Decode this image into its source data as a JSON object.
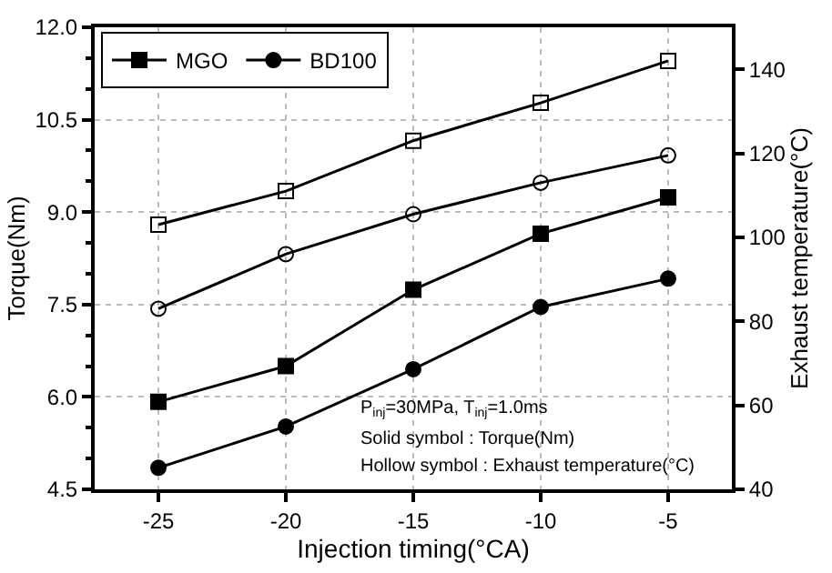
{
  "chart_data": {
    "type": "line",
    "xlabel": "Injection timing(°CA)",
    "ylabel": "Torque(Nm)",
    "y2label": "Exhaust temperature(°C)",
    "x": [
      -25,
      -20,
      -15,
      -10,
      -5
    ],
    "series": [
      {
        "name": "MGO",
        "color": "#000000",
        "marker": "square",
        "values": [
          5.92,
          6.5,
          7.74,
          8.65,
          9.24
        ]
      },
      {
        "name": "BD100",
        "color": "#000000",
        "marker": "circle",
        "values": [
          4.85,
          5.52,
          6.45,
          7.46,
          7.92
        ]
      },
      {
        "color": "#000000",
        "marker": "square",
        "axis": "y2",
        "values": [
          103,
          111,
          123,
          132,
          142
        ]
      },
      {
        "color": "#000000",
        "marker": "circle",
        "axis": "y2",
        "values": [
          83,
          96,
          105.5,
          113,
          119.5
        ]
      }
    ],
    "xlim": [
      -27.5,
      -2.5
    ],
    "xticks": [
      -25,
      -20,
      -15,
      -10,
      -5
    ],
    "ylim": [
      4.5,
      12.0
    ],
    "yticks": [
      4.5,
      {
        "value": 6,
        "label": "6.0"
      },
      7.5,
      {
        "value": 9,
        "label": "9.0"
      },
      10.5,
      {
        "value": 12,
        "label": "12.0"
      }
    ],
    "y2lim": [
      40,
      150
    ],
    "y2ticks": [
      40,
      60,
      80,
      100,
      120,
      140
    ],
    "annotations": [
      "P$_{inj}$=30MPa, T$_{inj}$=1.0ms",
      "Solid symbol : Torque(Nm)",
      "Hollow symbol : Exhaust temperature(°C)"
    ],
    "grid": true,
    "legend": "top left",
    "line_style": "solid"
  }
}
